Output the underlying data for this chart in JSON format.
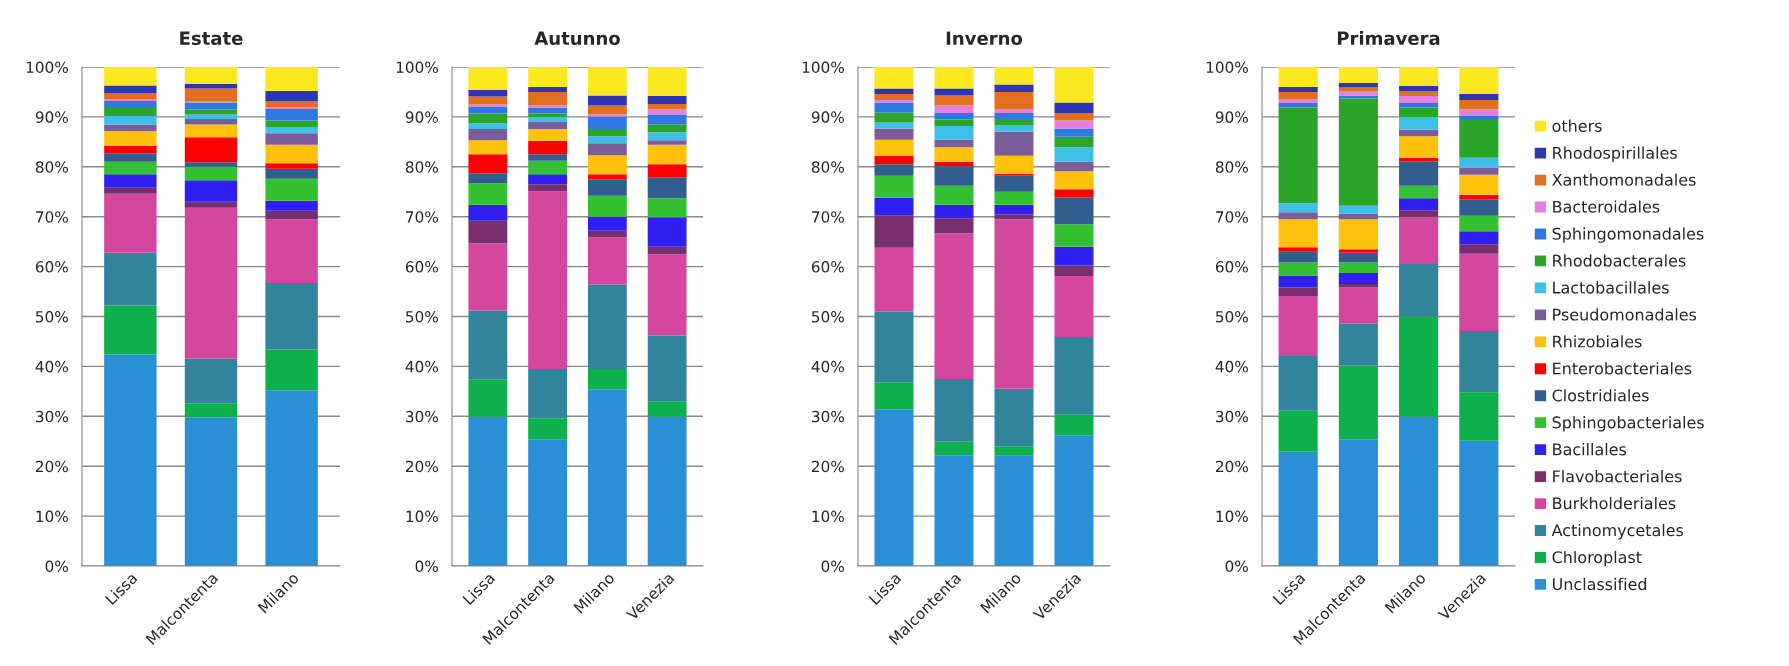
{
  "chart_data": [
    {
      "type": "bar",
      "stacked": true,
      "title": "Estate",
      "categories": [
        "Lissa",
        "Malcontenta",
        "Milano"
      ],
      "ylim": [
        0,
        100
      ],
      "yticks": [
        {
          "value": 0,
          "label": "0%"
        },
        {
          "value": 10,
          "label": "10%"
        },
        {
          "value": 20,
          "label": "20%"
        },
        {
          "value": 30,
          "label": "30%"
        },
        {
          "value": 40,
          "label": "40%"
        },
        {
          "value": 50,
          "label": "50%"
        },
        {
          "value": 60,
          "label": "60%"
        },
        {
          "value": 70,
          "label": "70%"
        },
        {
          "value": 80,
          "label": "80%"
        },
        {
          "value": 90,
          "label": "90%"
        },
        {
          "value": 100,
          "label": "100%"
        }
      ],
      "grid": "y",
      "legend": false,
      "series": [
        {
          "color": "#2b8fd6",
          "values": [
            42.4,
            29.8,
            35.2
          ]
        },
        {
          "color": "#0db04b",
          "values": [
            9.8,
            2.8,
            8.2
          ]
        },
        {
          "color": "#31849b",
          "values": [
            10.6,
            9.0,
            13.3
          ]
        },
        {
          "color": "#d4479e",
          "values": [
            11.8,
            30.2,
            12.8
          ]
        },
        {
          "color": "#772f6d",
          "values": [
            1.2,
            1.2,
            1.7
          ]
        },
        {
          "color": "#2f1ff0",
          "values": [
            2.7,
            4.3,
            2.0
          ]
        },
        {
          "color": "#33c132",
          "values": [
            2.5,
            2.7,
            4.4
          ]
        },
        {
          "color": "#325e8f",
          "values": [
            1.7,
            0.9,
            2.0
          ]
        },
        {
          "color": "#fc0000",
          "values": [
            1.5,
            5.0,
            1.1
          ]
        },
        {
          "color": "#fec20c",
          "values": [
            2.9,
            2.6,
            3.7
          ]
        },
        {
          "color": "#7b5c9b",
          "values": [
            1.4,
            1.1,
            2.3
          ]
        },
        {
          "color": "#3ebfe8",
          "values": [
            1.7,
            0.9,
            1.3
          ]
        },
        {
          "color": "#2aa52a",
          "values": [
            1.8,
            1.0,
            1.3
          ]
        },
        {
          "color": "#2f78e1",
          "values": [
            1.2,
            1.4,
            2.3
          ]
        },
        {
          "color": "#e37fe0",
          "values": [
            0.4,
            0.3,
            0.4
          ]
        },
        {
          "color": "#e07020",
          "values": [
            1.2,
            2.5,
            1.2
          ]
        },
        {
          "color": "#2d36b0",
          "values": [
            1.5,
            0.9,
            2.0
          ]
        },
        {
          "color": "#fbe81e",
          "values": [
            3.7,
            3.4,
            4.8
          ]
        }
      ]
    },
    {
      "type": "bar",
      "stacked": true,
      "title": "Autunno",
      "categories": [
        "Lissa",
        "Malcontenta",
        "Milano",
        "Venezia"
      ],
      "ylim": [
        0,
        100
      ],
      "yticks": [
        {
          "value": 0,
          "label": "0%"
        },
        {
          "value": 10,
          "label": "10%"
        },
        {
          "value": 20,
          "label": "20%"
        },
        {
          "value": 30,
          "label": "30%"
        },
        {
          "value": 40,
          "label": "40%"
        },
        {
          "value": 50,
          "label": "50%"
        },
        {
          "value": 60,
          "label": "60%"
        },
        {
          "value": 70,
          "label": "70%"
        },
        {
          "value": 80,
          "label": "80%"
        },
        {
          "value": 90,
          "label": "90%"
        },
        {
          "value": 100,
          "label": "100%"
        }
      ],
      "grid": "y",
      "legend": false,
      "series": [
        {
          "color": "#2b8fd6",
          "values": [
            29.9,
            25.4,
            35.4,
            29.9
          ]
        },
        {
          "color": "#0db04b",
          "values": [
            7.5,
            4.2,
            4.1,
            3.1
          ]
        },
        {
          "color": "#31849b",
          "values": [
            13.8,
            9.9,
            16.9,
            13.2
          ]
        },
        {
          "color": "#d4479e",
          "values": [
            13.5,
            35.6,
            9.5,
            16.3
          ]
        },
        {
          "color": "#772f6d",
          "values": [
            4.5,
            1.4,
            1.3,
            1.5
          ]
        },
        {
          "color": "#2f1ff0",
          "values": [
            3.2,
            2.0,
            2.8,
            5.9
          ]
        },
        {
          "color": "#33c132",
          "values": [
            4.3,
            2.7,
            4.2,
            3.8
          ]
        },
        {
          "color": "#325e8f",
          "values": [
            2.0,
            1.3,
            3.3,
            4.2
          ]
        },
        {
          "color": "#fc0000",
          "values": [
            3.8,
            2.7,
            1.0,
            2.6
          ]
        },
        {
          "color": "#fec20c",
          "values": [
            2.8,
            2.4,
            3.8,
            3.9
          ]
        },
        {
          "color": "#7b5c9b",
          "values": [
            2.3,
            1.4,
            2.4,
            0.9
          ]
        },
        {
          "color": "#3ebfe8",
          "values": [
            1.1,
            1.0,
            1.4,
            1.6
          ]
        },
        {
          "color": "#2aa52a",
          "values": [
            2.0,
            0.7,
            1.5,
            1.6
          ]
        },
        {
          "color": "#2f78e1",
          "values": [
            1.4,
            1.2,
            2.5,
            2.0
          ]
        },
        {
          "color": "#e37fe0",
          "values": [
            0.4,
            0.4,
            0.4,
            1.0
          ]
        },
        {
          "color": "#e07020",
          "values": [
            1.6,
            2.7,
            1.8,
            1.1
          ]
        },
        {
          "color": "#2d36b0",
          "values": [
            1.3,
            1.0,
            2.0,
            1.6
          ]
        },
        {
          "color": "#fbe81e",
          "values": [
            4.6,
            4.0,
            5.7,
            5.8
          ]
        }
      ]
    },
    {
      "type": "bar",
      "stacked": true,
      "title": "Inverno",
      "categories": [
        "Lissa",
        "Malcontenta",
        "Milano",
        "Venezia"
      ],
      "ylim": [
        0,
        100
      ],
      "yticks": [
        {
          "value": 0,
          "label": "0%"
        },
        {
          "value": 10,
          "label": "10%"
        },
        {
          "value": 20,
          "label": "20%"
        },
        {
          "value": 30,
          "label": "30%"
        },
        {
          "value": 40,
          "label": "40%"
        },
        {
          "value": 50,
          "label": "50%"
        },
        {
          "value": 60,
          "label": "60%"
        },
        {
          "value": 70,
          "label": "70%"
        },
        {
          "value": 80,
          "label": "80%"
        },
        {
          "value": 90,
          "label": "90%"
        },
        {
          "value": 100,
          "label": "100%"
        }
      ],
      "grid": "y",
      "legend": false,
      "series": [
        {
          "color": "#2b8fd6",
          "values": [
            31.4,
            22.2,
            22.1,
            26.2
          ]
        },
        {
          "color": "#0db04b",
          "values": [
            5.4,
            2.7,
            1.9,
            4.1
          ]
        },
        {
          "color": "#31849b",
          "values": [
            14.2,
            12.6,
            11.5,
            15.6
          ]
        },
        {
          "color": "#d4479e",
          "values": [
            12.8,
            29.2,
            34.0,
            12.2
          ]
        },
        {
          "color": "#772f6d",
          "values": [
            6.5,
            3.0,
            1.0,
            2.1
          ]
        },
        {
          "color": "#2f1ff0",
          "values": [
            3.5,
            2.7,
            1.9,
            3.8
          ]
        },
        {
          "color": "#33c132",
          "values": [
            4.4,
            3.8,
            2.6,
            4.5
          ]
        },
        {
          "color": "#325e8f",
          "values": [
            2.3,
            3.9,
            3.2,
            5.4
          ]
        },
        {
          "color": "#fc0000",
          "values": [
            1.7,
            0.9,
            0.4,
            1.6
          ]
        },
        {
          "color": "#fec20c",
          "values": [
            3.2,
            2.9,
            3.6,
            3.6
          ]
        },
        {
          "color": "#7b5c9b",
          "values": [
            2.3,
            1.5,
            4.8,
            1.9
          ]
        },
        {
          "color": "#3ebfe8",
          "values": [
            1.2,
            2.8,
            1.4,
            2.9
          ]
        },
        {
          "color": "#2aa52a",
          "values": [
            2.0,
            1.3,
            1.2,
            2.1
          ]
        },
        {
          "color": "#2f78e1",
          "values": [
            2.0,
            1.3,
            1.2,
            1.7
          ]
        },
        {
          "color": "#e37fe0",
          "values": [
            0.5,
            1.5,
            0.8,
            1.6
          ]
        },
        {
          "color": "#e07020",
          "values": [
            1.2,
            2.0,
            3.4,
            1.5
          ]
        },
        {
          "color": "#2d36b0",
          "values": [
            1.1,
            1.4,
            1.5,
            2.1
          ]
        },
        {
          "color": "#fbe81e",
          "values": [
            4.3,
            4.3,
            3.5,
            7.1
          ]
        }
      ]
    },
    {
      "type": "bar",
      "stacked": true,
      "title": "Primavera",
      "categories": [
        "Lissa",
        "Malcontenta",
        "Milano",
        "Venezia"
      ],
      "ylim": [
        0,
        100
      ],
      "yticks": [
        {
          "value": 0,
          "label": "0%"
        },
        {
          "value": 10,
          "label": "10%"
        },
        {
          "value": 20,
          "label": "20%"
        },
        {
          "value": 30,
          "label": "30%"
        },
        {
          "value": 40,
          "label": "40%"
        },
        {
          "value": 50,
          "label": "50%"
        },
        {
          "value": 60,
          "label": "60%"
        },
        {
          "value": 70,
          "label": "70%"
        },
        {
          "value": 80,
          "label": "80%"
        },
        {
          "value": 90,
          "label": "90%"
        },
        {
          "value": 100,
          "label": "100%"
        }
      ],
      "grid": "y",
      "legend": "right",
      "series": [
        {
          "name": "Unclassified",
          "color": "#2b8fd6",
          "values": [
            22.9,
            25.4,
            29.9,
            25.1
          ]
        },
        {
          "name": "Chloroplast",
          "color": "#0db04b",
          "values": [
            8.2,
            14.8,
            20.1,
            9.7
          ]
        },
        {
          "name": "Actinomycetales",
          "color": "#31849b",
          "values": [
            11.0,
            8.4,
            10.5,
            12.3
          ]
        },
        {
          "name": "Burkholderiales",
          "color": "#d4479e",
          "values": [
            12.0,
            7.2,
            9.4,
            15.5
          ]
        },
        {
          "name": "Flavobacteriales",
          "color": "#772f6d",
          "values": [
            1.7,
            0.7,
            1.4,
            1.9
          ]
        },
        {
          "name": "Bacillales",
          "color": "#2f1ff0",
          "values": [
            2.4,
            2.2,
            2.4,
            2.6
          ]
        },
        {
          "name": "Sphingobacteriales",
          "color": "#33c132",
          "values": [
            2.6,
            2.1,
            2.5,
            3.1
          ]
        },
        {
          "name": "Clostridiales",
          "color": "#325e8f",
          "values": [
            2.2,
            2.0,
            4.9,
            3.3
          ]
        },
        {
          "name": "Enterobacteriales",
          "color": "#fc0000",
          "values": [
            0.9,
            0.7,
            0.7,
            0.9
          ]
        },
        {
          "name": "Rhizobiales",
          "color": "#fec20c",
          "values": [
            5.6,
            6.0,
            4.3,
            4.0
          ]
        },
        {
          "name": "Pseudomonadales",
          "color": "#7b5c9b",
          "values": [
            1.4,
            1.1,
            1.3,
            1.4
          ]
        },
        {
          "name": "Lactobacillales",
          "color": "#3ebfe8",
          "values": [
            1.8,
            1.6,
            2.6,
            2.0
          ]
        },
        {
          "name": "Rhodobacterales",
          "color": "#2aa52a",
          "values": [
            19.2,
            21.5,
            1.9,
            7.6
          ]
        },
        {
          "name": "Sphingomonadales",
          "color": "#2f78e1",
          "values": [
            0.9,
            0.6,
            0.9,
            0.8
          ]
        },
        {
          "name": "Bacteroidales",
          "color": "#e37fe0",
          "values": [
            0.8,
            0.9,
            1.4,
            1.3
          ]
        },
        {
          "name": "Xanthomonadales",
          "color": "#e07020",
          "values": [
            1.4,
            0.8,
            1.0,
            1.9
          ]
        },
        {
          "name": "Rhodospirillales",
          "color": "#2d36b0",
          "values": [
            1.0,
            0.8,
            1.0,
            1.2
          ]
        },
        {
          "name": "others",
          "color": "#fbe81e",
          "values": [
            4.0,
            3.2,
            3.8,
            5.4
          ]
        }
      ]
    }
  ]
}
